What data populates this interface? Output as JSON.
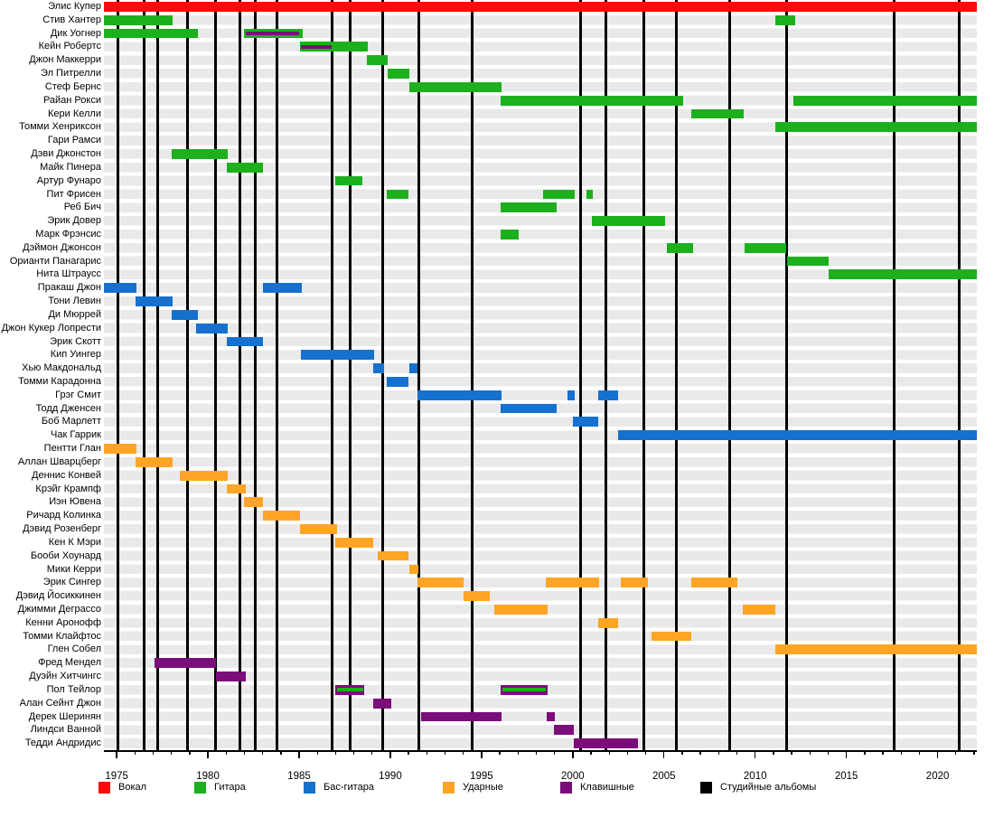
{
  "colors": {
    "vocals": "#fa0a0a",
    "guitar": "#1cb01c",
    "bass": "#1571cd",
    "drums": "#ffa425",
    "keyboards": "#7b0d7b",
    "albums": "#000000"
  },
  "legend": [
    {
      "label": "Вокал",
      "color": "vocals"
    },
    {
      "label": "Гитара",
      "color": "guitar"
    },
    {
      "label": "Бас-гитара",
      "color": "bass"
    },
    {
      "label": "Ударные",
      "color": "drums"
    },
    {
      "label": "Клавишные",
      "color": "keyboards"
    },
    {
      "label": "Студийные альбомы",
      "color": "albums"
    }
  ],
  "axis": {
    "start": 1974.3,
    "end": 2022.15,
    "major_ticks": [
      1975,
      1980,
      1985,
      1990,
      1995,
      2000,
      2005,
      2010,
      2015,
      2020
    ],
    "minor_from": 1975,
    "minor_to": 2022
  },
  "albums": [
    1975.05,
    1976.5,
    1977.25,
    1978.9,
    1980.4,
    1981.75,
    1982.6,
    1983.8,
    1986.8,
    1987.8,
    1989.6,
    1991.55,
    1994.5,
    2000.45,
    2001.8,
    2003.9,
    2005.7,
    2008.6,
    2011.7,
    2017.6,
    2021.2
  ],
  "chart_data": {
    "type": "timeline",
    "unit": "year",
    "members": [
      {
        "name": "Элис Купер",
        "instrument": "vocals",
        "bars": [
          {
            "s": 1974.3,
            "e": 2022.15
          }
        ]
      },
      {
        "name": "Стив Хантер",
        "instrument": "guitar",
        "bars": [
          {
            "s": 1974.3,
            "e": 1978.05
          },
          {
            "s": 2011.1,
            "e": 2012.2
          }
        ]
      },
      {
        "name": "Дик Уогнер",
        "instrument": "guitar",
        "bars": [
          {
            "s": 1974.3,
            "e": 1979.45
          },
          {
            "s": 1982.0,
            "e": 1985.2,
            "stripe": {
              "color": "keyboards",
              "s": 1982.1,
              "e": 1985.0
            }
          }
        ]
      },
      {
        "name": "Кейн Робертс",
        "instrument": "guitar",
        "bars": [
          {
            "s": 1985.05,
            "e": 1988.75,
            "stripe": {
              "color": "keyboards",
              "s": 1985.1,
              "e": 1986.8
            }
          }
        ]
      },
      {
        "name": "Джон Маккерри",
        "instrument": "guitar",
        "bars": [
          {
            "s": 1988.7,
            "e": 1989.85
          }
        ]
      },
      {
        "name": "Эл Питрелли",
        "instrument": "guitar",
        "bars": [
          {
            "s": 1989.85,
            "e": 1991.05
          }
        ]
      },
      {
        "name": "Стеф Бернс",
        "instrument": "guitar",
        "bars": [
          {
            "s": 1991.05,
            "e": 1996.1
          }
        ]
      },
      {
        "name": "Райан Рокси",
        "instrument": "guitar",
        "bars": [
          {
            "s": 1996.05,
            "e": 2006.05
          },
          {
            "s": 2012.1,
            "e": 2022.15
          }
        ]
      },
      {
        "name": "Кери Келли",
        "instrument": "guitar",
        "bars": [
          {
            "s": 2006.5,
            "e": 2009.35
          }
        ]
      },
      {
        "name": "Томми Хенриксон",
        "instrument": "guitar",
        "bars": [
          {
            "s": 2011.1,
            "e": 2022.15
          }
        ]
      },
      {
        "name": "Гари Рамси",
        "instrument": "guitar",
        "bars": []
      },
      {
        "name": "Дэви Джонстон",
        "instrument": "guitar",
        "bars": [
          {
            "s": 1978.0,
            "e": 1981.1
          }
        ]
      },
      {
        "name": "Майк Пинера",
        "instrument": "guitar",
        "bars": [
          {
            "s": 1981.05,
            "e": 1983.0
          }
        ]
      },
      {
        "name": "Артур Фунаро",
        "instrument": "guitar",
        "bars": [
          {
            "s": 1987.0,
            "e": 1988.45
          }
        ]
      },
      {
        "name": "Пит Фрисен",
        "instrument": "guitar",
        "bars": [
          {
            "s": 1989.8,
            "e": 1991.0
          },
          {
            "s": 1998.35,
            "e": 2000.1
          },
          {
            "s": 2000.75,
            "e": 2001.1
          }
        ]
      },
      {
        "name": "Реб Бич",
        "instrument": "guitar",
        "bars": [
          {
            "s": 1996.05,
            "e": 1999.1
          }
        ]
      },
      {
        "name": "Эрик Довер",
        "instrument": "guitar",
        "bars": [
          {
            "s": 2001.05,
            "e": 2005.05
          }
        ]
      },
      {
        "name": "Марк Фрэнсис",
        "instrument": "guitar",
        "bars": [
          {
            "s": 1996.05,
            "e": 1997.05
          }
        ]
      },
      {
        "name": "Дэймон Джонсон",
        "instrument": "guitar",
        "bars": [
          {
            "s": 2005.15,
            "e": 2006.6
          },
          {
            "s": 2009.4,
            "e": 2011.7
          }
        ]
      },
      {
        "name": "Орианти Панагарис",
        "instrument": "guitar",
        "bars": [
          {
            "s": 2011.75,
            "e": 2014.05
          }
        ]
      },
      {
        "name": "Нита Штраусс",
        "instrument": "guitar",
        "bars": [
          {
            "s": 2014.05,
            "e": 2022.15
          }
        ]
      },
      {
        "name": "Пракаш Джон",
        "instrument": "bass",
        "bars": [
          {
            "s": 1974.3,
            "e": 1976.1
          },
          {
            "s": 1983.0,
            "e": 1985.15
          }
        ]
      },
      {
        "name": "Тони Левин",
        "instrument": "bass",
        "bars": [
          {
            "s": 1976.05,
            "e": 1978.05
          }
        ]
      },
      {
        "name": "Ди Мюррей",
        "instrument": "bass",
        "bars": [
          {
            "s": 1978.0,
            "e": 1979.45
          }
        ]
      },
      {
        "name": "Джон Кукер Лопрести",
        "instrument": "bass",
        "bars": [
          {
            "s": 1979.35,
            "e": 1981.1
          }
        ]
      },
      {
        "name": "Эрик Скотт",
        "instrument": "bass",
        "bars": [
          {
            "s": 1981.05,
            "e": 1983.0
          }
        ]
      },
      {
        "name": "Кип Уингер",
        "instrument": "bass",
        "bars": [
          {
            "s": 1985.1,
            "e": 1989.1
          }
        ]
      },
      {
        "name": "Хью Макдональд",
        "instrument": "bass",
        "bars": [
          {
            "s": 1989.05,
            "e": 1989.65
          },
          {
            "s": 1991.05,
            "e": 1991.5
          }
        ]
      },
      {
        "name": "Томми Карадонна",
        "instrument": "bass",
        "bars": [
          {
            "s": 1989.8,
            "e": 1991.0
          }
        ]
      },
      {
        "name": "Грэг Смит",
        "instrument": "bass",
        "bars": [
          {
            "s": 1991.5,
            "e": 1996.1
          },
          {
            "s": 1999.7,
            "e": 2000.1
          },
          {
            "s": 2001.4,
            "e": 2002.5
          }
        ]
      },
      {
        "name": "Тодд Дженсен",
        "instrument": "bass",
        "bars": [
          {
            "s": 1996.05,
            "e": 1999.1
          }
        ]
      },
      {
        "name": "Боб Марлетт",
        "instrument": "bass",
        "bars": [
          {
            "s": 2000.0,
            "e": 2001.4
          }
        ]
      },
      {
        "name": "Чак Гаррик",
        "instrument": "bass",
        "bars": [
          {
            "s": 2002.5,
            "e": 2022.15
          }
        ]
      },
      {
        "name": "Пентти Глан",
        "instrument": "drums",
        "bars": [
          {
            "s": 1974.3,
            "e": 1976.1
          }
        ]
      },
      {
        "name": "Аллан Шварцберг",
        "instrument": "drums",
        "bars": [
          {
            "s": 1976.05,
            "e": 1978.05
          }
        ]
      },
      {
        "name": "Деннис Конвей",
        "instrument": "drums",
        "bars": [
          {
            "s": 1978.45,
            "e": 1981.1
          }
        ]
      },
      {
        "name": "Крэйг Крампф",
        "instrument": "drums",
        "bars": [
          {
            "s": 1981.05,
            "e": 1982.1
          }
        ]
      },
      {
        "name": "Иэн Ювена",
        "instrument": "drums",
        "bars": [
          {
            "s": 1982.0,
            "e": 1983.0
          }
        ]
      },
      {
        "name": "Ричард Колинка",
        "instrument": "drums",
        "bars": [
          {
            "s": 1983.0,
            "e": 1985.05
          }
        ]
      },
      {
        "name": "Дэвид Розенберг",
        "instrument": "drums",
        "bars": [
          {
            "s": 1985.05,
            "e": 1987.1
          }
        ]
      },
      {
        "name": "Кен К Мэри",
        "instrument": "drums",
        "bars": [
          {
            "s": 1987.0,
            "e": 1989.05
          }
        ]
      },
      {
        "name": "Бооби Хоунард",
        "instrument": "drums",
        "bars": [
          {
            "s": 1989.3,
            "e": 1991.0
          }
        ]
      },
      {
        "name": "Мики Керри",
        "instrument": "drums",
        "bars": [
          {
            "s": 1991.05,
            "e": 1991.55
          }
        ]
      },
      {
        "name": "Эрик Сингер",
        "instrument": "drums",
        "bars": [
          {
            "s": 1991.5,
            "e": 1994.0
          },
          {
            "s": 1998.5,
            "e": 2001.45
          },
          {
            "s": 2002.65,
            "e": 2004.1
          },
          {
            "s": 2006.5,
            "e": 2009.0
          }
        ]
      },
      {
        "name": "Дэвид Йосиккинен",
        "instrument": "drums",
        "bars": [
          {
            "s": 1994.0,
            "e": 1995.45
          }
        ]
      },
      {
        "name": "Джимми Деграссо",
        "instrument": "drums",
        "bars": [
          {
            "s": 1995.7,
            "e": 1998.6
          },
          {
            "s": 2009.3,
            "e": 2011.1
          }
        ]
      },
      {
        "name": "Кенни Аронофф",
        "instrument": "drums",
        "bars": [
          {
            "s": 2001.4,
            "e": 2002.5
          }
        ]
      },
      {
        "name": "Томми Клайфтос",
        "instrument": "drums",
        "bars": [
          {
            "s": 2004.3,
            "e": 2006.5
          }
        ]
      },
      {
        "name": "Глен Собел",
        "instrument": "drums",
        "bars": [
          {
            "s": 2011.1,
            "e": 2022.15
          }
        ]
      },
      {
        "name": "Фред Мендел",
        "instrument": "keyboards",
        "bars": [
          {
            "s": 1977.05,
            "e": 1980.45
          }
        ]
      },
      {
        "name": "Дуэйн Хитчингс",
        "instrument": "keyboards",
        "bars": [
          {
            "s": 1980.45,
            "e": 1982.1
          }
        ]
      },
      {
        "name": "Пол Тейлор",
        "instrument": "keyboards",
        "bars": [
          {
            "s": 1987.0,
            "e": 1988.55,
            "stripe": {
              "color": "guitar",
              "s": 1987.1,
              "e": 1988.5
            }
          },
          {
            "s": 1996.05,
            "e": 1998.6,
            "stripe": {
              "color": "guitar",
              "s": 1996.15,
              "e": 1998.5
            }
          }
        ]
      },
      {
        "name": "Алан Сейнт Джон",
        "instrument": "keyboards",
        "bars": [
          {
            "s": 1989.05,
            "e": 1990.05
          }
        ]
      },
      {
        "name": "Дерек Шеринян",
        "instrument": "keyboards",
        "bars": [
          {
            "s": 1991.7,
            "e": 1996.1
          },
          {
            "s": 1998.55,
            "e": 1999.0
          }
        ]
      },
      {
        "name": "Линдси Ванной",
        "instrument": "keyboards",
        "bars": [
          {
            "s": 1998.95,
            "e": 2000.05
          }
        ]
      },
      {
        "name": "Тедди Андридис",
        "instrument": "keyboards",
        "bars": [
          {
            "s": 2000.05,
            "e": 2003.6
          }
        ]
      }
    ]
  }
}
